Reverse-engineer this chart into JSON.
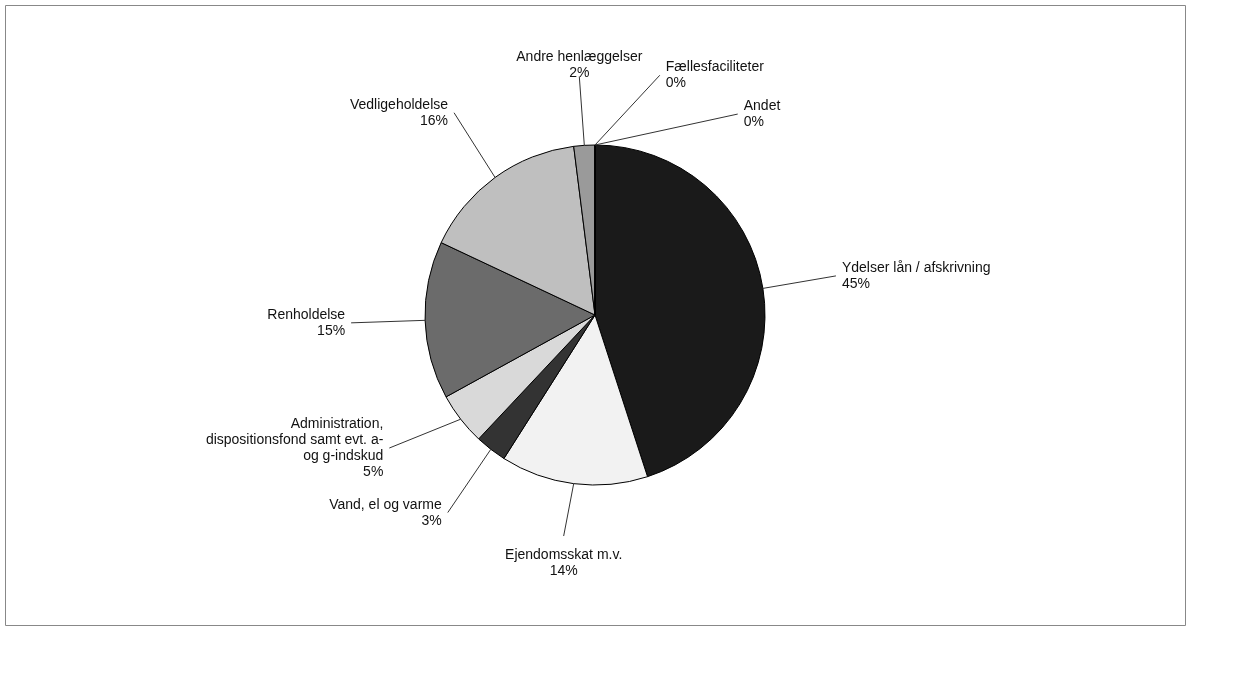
{
  "chart_data": {
    "type": "pie",
    "categories": [
      "Ydelser lån / afskrivning",
      "Ejendomsskat m.v.",
      "Vand, el og varme",
      "Administration, dispositionsfond samt evt. a- og g-indskud",
      "Renholdelse",
      "Vedligeholdelse",
      "Andre henlæggelser",
      "Fællesfaciliteter",
      "Andet"
    ],
    "values": [
      45,
      14,
      3,
      5,
      15,
      16,
      2,
      0,
      0
    ],
    "value_labels": [
      "45%",
      "14%",
      "3%",
      "5%",
      "15%",
      "16%",
      "2%",
      "0%",
      "0%"
    ],
    "colors": [
      "#1a1a1a",
      "#f2f2f2",
      "#333333",
      "#d9d9d9",
      "#6b6b6b",
      "#bfbfbf",
      "#9a9a9a",
      "#ffffff",
      "#ffffff"
    ],
    "legend": false
  }
}
